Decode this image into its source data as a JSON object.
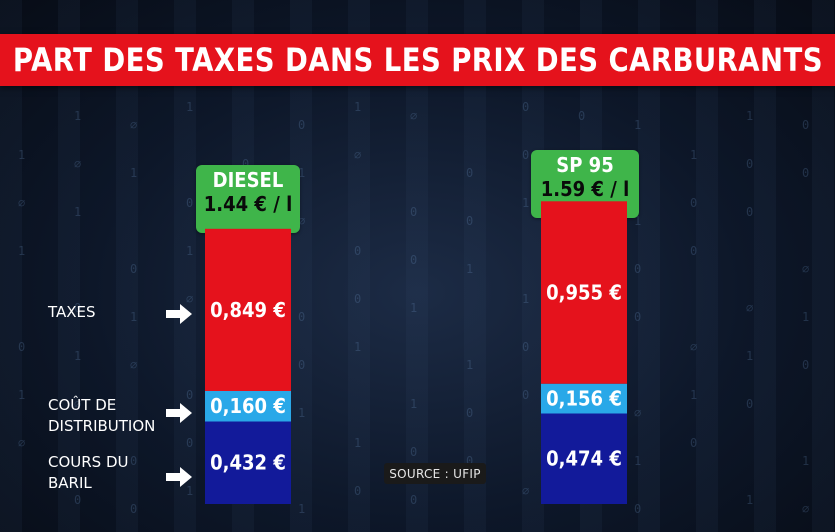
{
  "title": "PART DES TAXES DANS LES PRIX DES CARBURANTS",
  "source": "SOURCE : UFIP",
  "row_labels": {
    "taxes": "TAXES",
    "distribution_line1": "COÛT DE",
    "distribution_line2": "DISTRIBUTION",
    "baril_line1": "COURS DU",
    "baril_line2": "BARIL"
  },
  "fuels": [
    {
      "name": "DIESEL",
      "price_label": "1.44 € / l"
    },
    {
      "name": "SP 95",
      "price_label": "1.59 € / l"
    }
  ],
  "colors": {
    "banner": "#e5121c",
    "taxes": "#e5121c",
    "distribution": "#29a8e8",
    "baril": "#121a9a",
    "badge": "#3fb54a"
  },
  "icons": [
    "arrow-right-icon"
  ],
  "chart_data": {
    "type": "bar",
    "stacked": true,
    "title": "PART DES TAXES DANS LES PRIX DES CARBURANTS",
    "categories": [
      "DIESEL",
      "SP 95"
    ],
    "category_totals": [
      "1.44 € / l",
      "1.59 € / l"
    ],
    "series": [
      {
        "name": "COURS DU BARIL",
        "values": [
          0.432,
          0.474
        ],
        "labels": [
          "0,432 €",
          "0,474 €"
        ],
        "color": "#121a9a"
      },
      {
        "name": "COÛT DE DISTRIBUTION",
        "values": [
          0.16,
          0.156
        ],
        "labels": [
          "0,160 €",
          "0,156 €"
        ],
        "color": "#29a8e8"
      },
      {
        "name": "TAXES",
        "values": [
          0.849,
          0.955
        ],
        "labels": [
          "0,849 €",
          "0,955 €"
        ],
        "color": "#e5121c"
      }
    ],
    "legend": "left",
    "grid": false
  }
}
